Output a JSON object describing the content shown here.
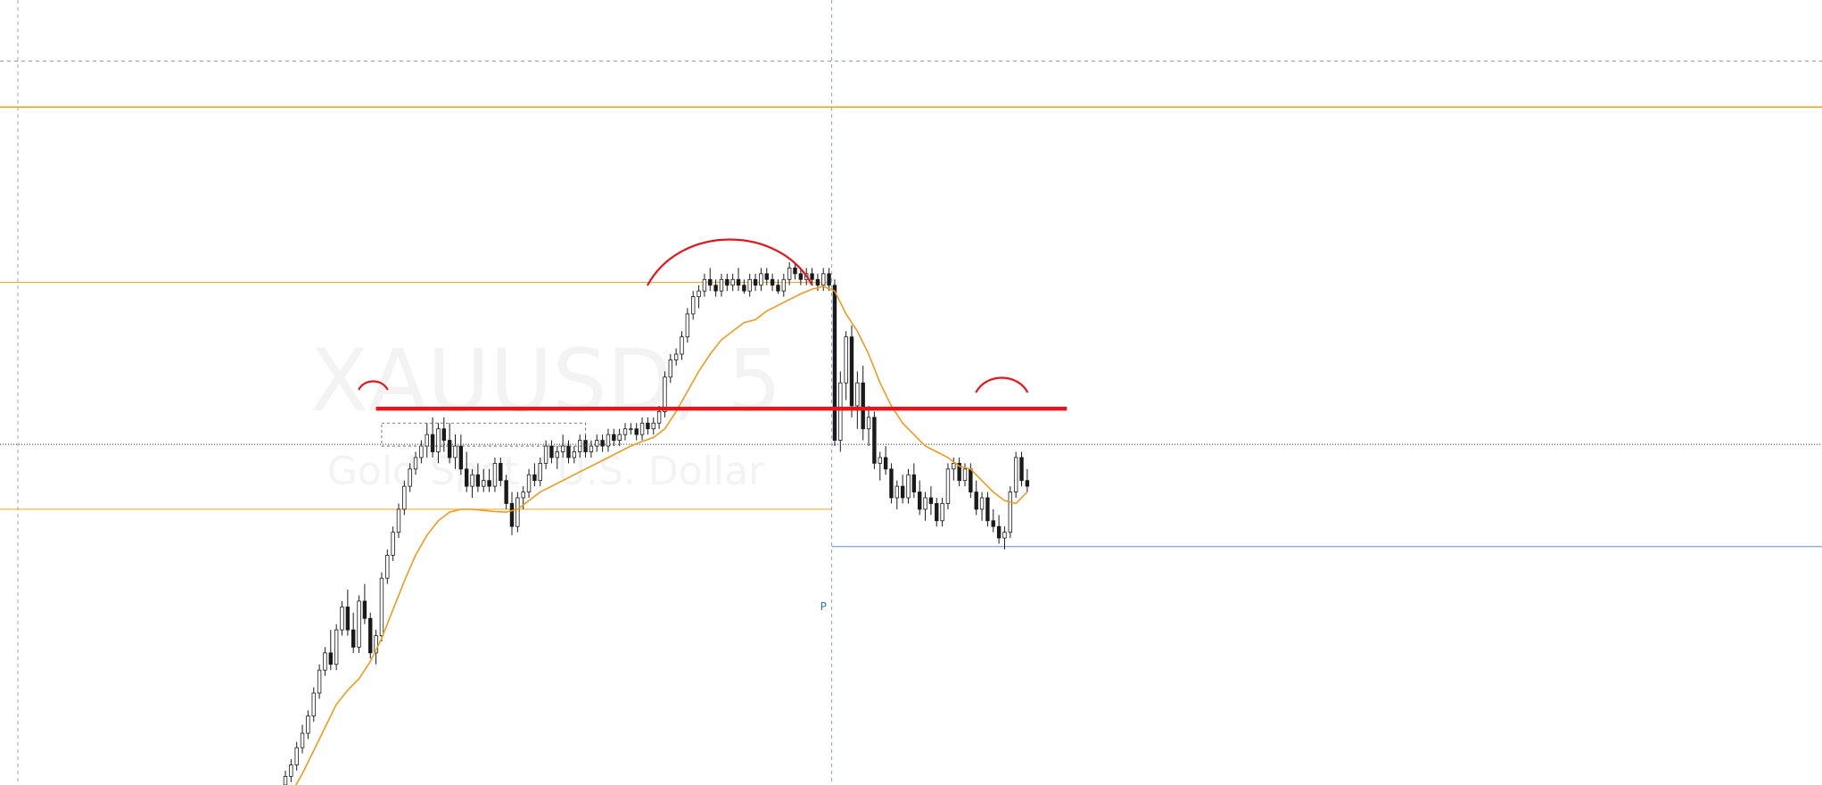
{
  "watermark": {
    "symbol": "XAUUSD, 5",
    "description": "Gold Spot / U.S. Dollar"
  },
  "marker_label": "P",
  "colors": {
    "background": "#ffffff",
    "candle_up": "#ffffff",
    "candle_down": "#1a1a1a",
    "wick": "#1a1a1a",
    "moving_average": "#f39a1e",
    "level_lines": "#f5a623",
    "annotation": "#e8141b",
    "pivot_line": "#5b8fe0",
    "session_divider": "#7aa7d9"
  },
  "chart_data": {
    "type": "candlestick",
    "title": "",
    "xlabel": "",
    "ylabel": "",
    "ylim": [
      0,
      100
    ],
    "grid": false,
    "legend": "none",
    "indicator": "moving-average",
    "ohlc": [
      [
        0.0,
        2.5,
        -1.5,
        1.5
      ],
      [
        1.5,
        4.5,
        0.5,
        3.5
      ],
      [
        3.5,
        7.5,
        2.5,
        6.5
      ],
      [
        6.5,
        10.5,
        5.5,
        9.0
      ],
      [
        9.0,
        13.0,
        8.0,
        12.0
      ],
      [
        12.0,
        17.0,
        11.0,
        16.0
      ],
      [
        16.0,
        21.0,
        15.0,
        20.0
      ],
      [
        20.0,
        24.0,
        19.0,
        23.0
      ],
      [
        23.0,
        27.0,
        20.0,
        21.0
      ],
      [
        21.0,
        28.0,
        20.0,
        27.0
      ],
      [
        27.0,
        32.0,
        26.0,
        31.0
      ],
      [
        31.0,
        34.0,
        26.0,
        27.0
      ],
      [
        27.0,
        30.0,
        23.0,
        24.0
      ],
      [
        24.0,
        33.0,
        23.0,
        32.0
      ],
      [
        32.0,
        35.0,
        28.0,
        29.0
      ],
      [
        29.0,
        30.0,
        22.0,
        23.0
      ],
      [
        23.0,
        27.0,
        21.0,
        26.0
      ],
      [
        26.0,
        37.0,
        25.0,
        36.0
      ],
      [
        36.0,
        41.0,
        35.0,
        40.0
      ],
      [
        40.0,
        45.0,
        39.0,
        44.0
      ],
      [
        44.0,
        49.0,
        43.0,
        48.0
      ],
      [
        48.0,
        53.0,
        47.0,
        52.0
      ],
      [
        52.0,
        56.0,
        51.0,
        55.0
      ],
      [
        55.0,
        58.0,
        54.0,
        57.0
      ],
      [
        57.0,
        60.0,
        56.0,
        59.0
      ],
      [
        59.0,
        63.0,
        57.0,
        61.0
      ],
      [
        61.0,
        64.0,
        57.0,
        58.0
      ],
      [
        58.0,
        63.0,
        56.0,
        62.0
      ],
      [
        62.0,
        64.0,
        58.0,
        60.0
      ],
      [
        60.0,
        63.0,
        56.0,
        57.0
      ],
      [
        57.0,
        61.0,
        55.0,
        59.0
      ],
      [
        59.0,
        61.0,
        54.0,
        55.0
      ],
      [
        55.0,
        58.0,
        51.0,
        52.0
      ],
      [
        52.0,
        55.0,
        50.0,
        54.0
      ],
      [
        54.0,
        56.0,
        51.0,
        52.0
      ],
      [
        52.0,
        55.0,
        51.0,
        53.0
      ],
      [
        53.0,
        55.0,
        51.0,
        52.0
      ],
      [
        52.0,
        57.0,
        51.0,
        56.0
      ],
      [
        56.0,
        57.0,
        52.0,
        53.0
      ],
      [
        53.0,
        54.0,
        48.0,
        49.0
      ],
      [
        49.0,
        51.0,
        43.5,
        45.0
      ],
      [
        45.0,
        51.0,
        44.0,
        50.0
      ],
      [
        50.0,
        52.0,
        48.0,
        51.0
      ],
      [
        51.0,
        55.0,
        50.0,
        54.0
      ],
      [
        54.0,
        56.0,
        52.0,
        53.0
      ],
      [
        53.0,
        57.0,
        52.0,
        56.0
      ],
      [
        56.0,
        60.0,
        55.0,
        59.0
      ],
      [
        59.0,
        60.0,
        56.0,
        57.0
      ],
      [
        57.0,
        59.0,
        55.0,
        58.0
      ],
      [
        58.0,
        61.0,
        57.0,
        59.0
      ],
      [
        59.0,
        60.0,
        56.0,
        57.0
      ],
      [
        57.0,
        59.0,
        56.0,
        58.0
      ],
      [
        58.0,
        61.0,
        57.0,
        60.0
      ],
      [
        60.0,
        61.0,
        57.0,
        58.0
      ],
      [
        58.0,
        60.0,
        57.0,
        59.0
      ],
      [
        59.0,
        61.0,
        58.0,
        60.0
      ],
      [
        60.0,
        61.0,
        58.0,
        59.0
      ],
      [
        59.0,
        62.0,
        58.0,
        61.0
      ],
      [
        61.0,
        62.0,
        59.0,
        60.0
      ],
      [
        60.0,
        62.0,
        59.0,
        61.0
      ],
      [
        61.0,
        63.0,
        60.0,
        62.0
      ],
      [
        62.0,
        63.0,
        61.0,
        62.0
      ],
      [
        62.0,
        63.0,
        60.0,
        61.0
      ],
      [
        61.0,
        64.0,
        60.0,
        63.0
      ],
      [
        63.0,
        64.0,
        61.0,
        62.0
      ],
      [
        62.0,
        64.0,
        61.0,
        63.0
      ],
      [
        63.0,
        66.0,
        62.0,
        65.0
      ],
      [
        65.0,
        72.0,
        64.0,
        71.0
      ],
      [
        71.0,
        75.0,
        70.0,
        74.0
      ],
      [
        74.0,
        76.0,
        73.0,
        75.0
      ],
      [
        75.0,
        79.0,
        74.0,
        78.0
      ],
      [
        78.0,
        83.0,
        77.0,
        82.0
      ],
      [
        82.0,
        86.0,
        81.0,
        85.0
      ],
      [
        85.0,
        87.0,
        83.0,
        86.0
      ],
      [
        86.0,
        89.0,
        85.0,
        88.0
      ],
      [
        88.0,
        90.0,
        86.0,
        87.0
      ],
      [
        87.0,
        88.0,
        85.0,
        86.0
      ],
      [
        86.0,
        89.0,
        85.0,
        88.0
      ],
      [
        88.0,
        89.0,
        86.0,
        87.0
      ],
      [
        87.0,
        89.0,
        86.0,
        88.0
      ],
      [
        88.0,
        90.0,
        86.0,
        87.0
      ],
      [
        87.0,
        88.0,
        85.5,
        86.0
      ],
      [
        86.0,
        89.0,
        85.0,
        88.0
      ],
      [
        88.0,
        89.0,
        86.0,
        87.0
      ],
      [
        87.0,
        90.0,
        86.0,
        89.0
      ],
      [
        89.0,
        90.0,
        87.0,
        88.0
      ],
      [
        88.0,
        89.0,
        86.0,
        87.0
      ],
      [
        87.0,
        88.0,
        85.5,
        86.0
      ],
      [
        86.0,
        89.0,
        85.0,
        88.0
      ],
      [
        88.0,
        91.0,
        87.0,
        90.0
      ],
      [
        90.0,
        91.0,
        88.0,
        89.0
      ],
      [
        89.0,
        90.0,
        87.0,
        88.0
      ],
      [
        88.0,
        90.0,
        87.0,
        89.0
      ],
      [
        89.0,
        90.0,
        87.0,
        88.0
      ],
      [
        88.0,
        89.0,
        86.0,
        87.0
      ],
      [
        87.0,
        90.0,
        86.0,
        89.0
      ],
      [
        89.0,
        90.0,
        86.0,
        87.0
      ],
      [
        87.0,
        88.0,
        59.0,
        60.0
      ],
      [
        60.0,
        72.0,
        58.0,
        70.0
      ],
      [
        70.0,
        79.0,
        67.0,
        78.0
      ],
      [
        78.0,
        80.0,
        64.0,
        66.0
      ],
      [
        66.0,
        72.0,
        62.0,
        70.0
      ],
      [
        70.0,
        73.0,
        60.0,
        62.0
      ],
      [
        62.0,
        66.0,
        59.0,
        64.0
      ],
      [
        64.0,
        65.0,
        55.0,
        56.0
      ],
      [
        56.0,
        58.0,
        53.0,
        57.0
      ],
      [
        57.0,
        59.0,
        54.0,
        55.0
      ],
      [
        55.0,
        56.0,
        49.0,
        50.0
      ],
      [
        50.0,
        53.0,
        48.0,
        52.0
      ],
      [
        52.0,
        54.0,
        49.0,
        50.0
      ],
      [
        50.0,
        55.0,
        49.0,
        54.0
      ],
      [
        54.0,
        56.0,
        50.0,
        51.0
      ],
      [
        51.0,
        53.0,
        47.0,
        48.0
      ],
      [
        48.0,
        51.0,
        46.0,
        50.0
      ],
      [
        50.0,
        52.0,
        47.0,
        49.0
      ],
      [
        49.0,
        50.0,
        45.0,
        46.0
      ],
      [
        46.0,
        50.0,
        45.0,
        49.0
      ],
      [
        49.0,
        56.0,
        48.0,
        55.0
      ],
      [
        55.0,
        57.0,
        53.0,
        56.0
      ],
      [
        56.0,
        57.0,
        52.0,
        53.0
      ],
      [
        53.0,
        56.0,
        52.0,
        55.0
      ],
      [
        55.0,
        56.0,
        50.0,
        51.0
      ],
      [
        51.0,
        53.0,
        47.0,
        48.0
      ],
      [
        48.0,
        51.0,
        46.0,
        50.0
      ],
      [
        50.0,
        51.0,
        45.0,
        46.0
      ],
      [
        46.0,
        48.0,
        44.0,
        45.0
      ],
      [
        45.0,
        47.0,
        42.0,
        43.0
      ],
      [
        43.0,
        45.0,
        41.0,
        44.0
      ],
      [
        44.0,
        52.0,
        43.0,
        51.0
      ],
      [
        51.0,
        58.0,
        50.0,
        57.0
      ],
      [
        57.0,
        58.0,
        52.0,
        53.0
      ],
      [
        53.0,
        55.0,
        51.0,
        52.0
      ]
    ],
    "moving_average": [
      [
        1,
        -1.5
      ],
      [
        3,
        2.0
      ],
      [
        5,
        6.0
      ],
      [
        7,
        10.0
      ],
      [
        9,
        14.0
      ],
      [
        11,
        16.5
      ],
      [
        13,
        18.5
      ],
      [
        15,
        21.5
      ],
      [
        17,
        25.5
      ],
      [
        19,
        30.5
      ],
      [
        21,
        35.5
      ],
      [
        23,
        40.0
      ],
      [
        25,
        43.5
      ],
      [
        27,
        46.0
      ],
      [
        29,
        47.5
      ],
      [
        31,
        48.0
      ],
      [
        33,
        48.0
      ],
      [
        35,
        47.8
      ],
      [
        37,
        47.6
      ],
      [
        39,
        47.5
      ],
      [
        41,
        48.0
      ],
      [
        43,
        49.5
      ],
      [
        45,
        51.0
      ],
      [
        47,
        52.0
      ],
      [
        49,
        53.0
      ],
      [
        51,
        54.0
      ],
      [
        53,
        55.0
      ],
      [
        55,
        56.0
      ],
      [
        57,
        57.0
      ],
      [
        59,
        58.0
      ],
      [
        61,
        59.0
      ],
      [
        63,
        59.8
      ],
      [
        65,
        60.5
      ],
      [
        67,
        62.0
      ],
      [
        69,
        65.0
      ],
      [
        71,
        68.5
      ],
      [
        73,
        72.0
      ],
      [
        75,
        75.0
      ],
      [
        77,
        77.5
      ],
      [
        79,
        79.0
      ],
      [
        81,
        80.5
      ],
      [
        83,
        81.0
      ],
      [
        85,
        82.5
      ],
      [
        87,
        83.5
      ],
      [
        89,
        84.5
      ],
      [
        91,
        85.5
      ],
      [
        93,
        86.3
      ],
      [
        95,
        86.8
      ],
      [
        97,
        86.0
      ],
      [
        99,
        82.0
      ],
      [
        101,
        79.0
      ],
      [
        103,
        75.0
      ],
      [
        105,
        70.0
      ],
      [
        107,
        66.0
      ],
      [
        109,
        63.0
      ],
      [
        111,
        61.0
      ],
      [
        113,
        59.0
      ],
      [
        115,
        58.0
      ],
      [
        117,
        57.0
      ],
      [
        119,
        55.5
      ],
      [
        121,
        55.0
      ],
      [
        123,
        53.0
      ],
      [
        125,
        51.0
      ],
      [
        127,
        49.5
      ],
      [
        129,
        49.0
      ],
      [
        130,
        50.0
      ],
      [
        131,
        51.0
      ]
    ],
    "horizontal_levels": [
      {
        "kind": "level",
        "y": 118,
        "span": "full"
      },
      {
        "kind": "level",
        "y": 87.5,
        "span": "left"
      },
      {
        "kind": "level",
        "y": 48,
        "span": "left"
      },
      {
        "kind": "current-price",
        "y": 59.3,
        "span": "full"
      },
      {
        "kind": "upper-dashed",
        "y": 126,
        "span": "full"
      },
      {
        "kind": "pivot",
        "y": 41.5,
        "span": "right"
      }
    ],
    "annotations": {
      "neckline": {
        "y": 65.5,
        "x_from": 16,
        "x_to": 138
      },
      "arcs": [
        {
          "x_from": 13,
          "x_to": 18,
          "y": 69.5
        },
        {
          "x_from": 64,
          "x_to": 93,
          "y": 90.5
        },
        {
          "x_from": 122,
          "x_to": 131,
          "y": 69.5
        }
      ],
      "range_box": {
        "y_top": 63.0,
        "y_bottom": 59.0,
        "x_from": 17,
        "x_to": 53
      }
    },
    "session_divider_index": 96
  }
}
